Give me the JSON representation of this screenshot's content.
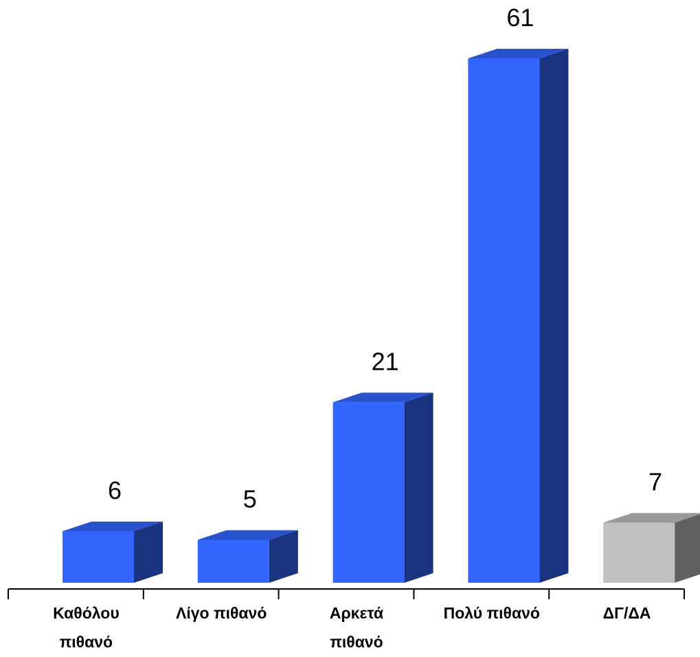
{
  "chart_data": {
    "type": "bar",
    "categories": [
      "Καθόλου\nπιθανό",
      "Λίγο πιθανό",
      "Αρκετά\nπιθανό",
      "Πολύ πιθανό",
      "ΔΓ/ΔΑ"
    ],
    "values": [
      6,
      5,
      21,
      61,
      7
    ],
    "data_labels": [
      "6",
      "5",
      "21",
      "61",
      "7"
    ],
    "title": "",
    "xlabel": "",
    "ylabel": "",
    "ylim": [
      0,
      62
    ],
    "grid": false,
    "legend": "none",
    "style": "3d",
    "colors": {
      "front": [
        "#3366ff",
        "#3366ff",
        "#3366ff",
        "#3366ff",
        "#c0c0c0"
      ],
      "side": [
        "#1a3380",
        "#1a3380",
        "#1a3380",
        "#1a3380",
        "#606060"
      ],
      "top": [
        "#2a52cc",
        "#2a52cc",
        "#2a52cc",
        "#2a52cc",
        "#999999"
      ]
    }
  }
}
